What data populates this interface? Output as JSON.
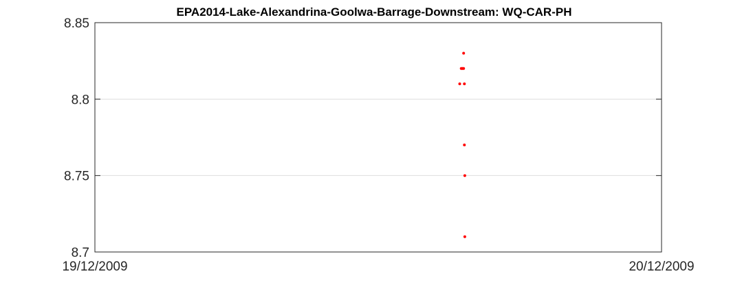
{
  "chart_data": {
    "type": "scatter",
    "title": "EPA2014-Lake-Alexandrina-Goolwa-Barrage-Downstream: WQ-CAR-PH",
    "xlabel": "",
    "ylabel": "",
    "x_axis_type": "date",
    "xlim": [
      "2009-12-19T00:00",
      "2009-12-20T00:00"
    ],
    "ylim": [
      8.7,
      8.85
    ],
    "x_tick_labels": [
      "19/12/2009",
      "20/12/2009"
    ],
    "y_ticks": [
      8.7,
      8.75,
      8.8,
      8.85
    ],
    "y_tick_labels": [
      "8.7",
      "8.75",
      "8.8",
      "8.85"
    ],
    "grid": "horizontal",
    "legend": "none",
    "marker_color": "#ff0000",
    "series": [
      {
        "points": [
          {
            "x": "2009-12-19T15:37",
            "y": 8.83
          },
          {
            "x": "2009-12-19T15:31",
            "y": 8.82
          },
          {
            "x": "2009-12-19T15:33",
            "y": 8.82
          },
          {
            "x": "2009-12-19T15:35",
            "y": 8.82
          },
          {
            "x": "2009-12-19T15:37",
            "y": 8.82
          },
          {
            "x": "2009-12-19T15:27",
            "y": 8.81
          },
          {
            "x": "2009-12-19T15:39",
            "y": 8.81
          },
          {
            "x": "2009-12-19T15:39",
            "y": 8.77
          },
          {
            "x": "2009-12-19T15:40",
            "y": 8.75
          },
          {
            "x": "2009-12-19T15:40",
            "y": 8.71
          }
        ]
      }
    ]
  }
}
